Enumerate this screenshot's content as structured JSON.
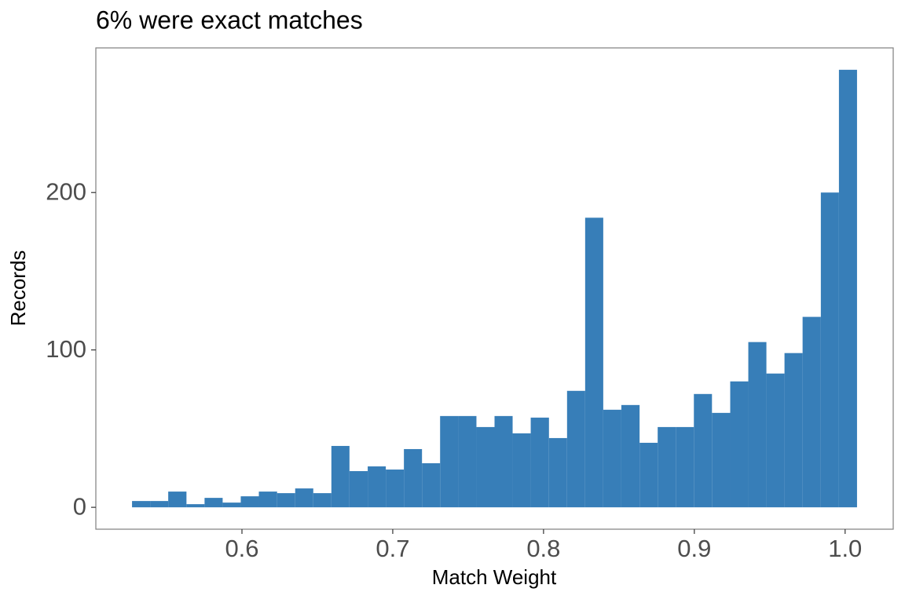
{
  "chart_data": {
    "type": "histogram",
    "title": "6% were exact matches",
    "x_label": "Match Weight",
    "y_label": "Records",
    "bins": [
      0.5271,
      0.5391,
      0.5511,
      0.5632,
      0.5752,
      0.5872,
      0.5992,
      0.6112,
      0.6233,
      0.6353,
      0.6473,
      0.6593,
      0.6713,
      0.6834,
      0.6954,
      0.7074,
      0.7194,
      0.7314,
      0.7435,
      0.7555,
      0.7675,
      0.7795,
      0.7915,
      0.8036,
      0.8156,
      0.8276,
      0.8396,
      0.8516,
      0.8637,
      0.8757,
      0.8877,
      0.8997,
      0.9117,
      0.9238,
      0.9358,
      0.9478,
      0.9598,
      0.9718,
      0.9839,
      0.9959,
      1.0079
    ],
    "values": [
      4,
      4,
      10,
      2,
      6,
      3,
      7,
      10,
      9,
      12,
      9,
      39,
      23,
      26,
      24,
      37,
      28,
      58,
      58,
      51,
      58,
      47,
      57,
      44,
      74,
      184,
      62,
      65,
      41,
      51,
      51,
      72,
      60,
      80,
      105,
      85,
      98,
      121,
      200,
      278
    ],
    "color": "#377eb8",
    "xlim": [
      0.5031,
      1.0319
    ],
    "xticks": [
      0.6,
      0.7,
      0.8,
      0.9,
      {
        "value": 1.0,
        "label": "1.0"
      }
    ],
    "ylim": [
      -13.9,
      291.9
    ],
    "yticks": [
      0,
      100,
      200
    ],
    "grid": false
  }
}
